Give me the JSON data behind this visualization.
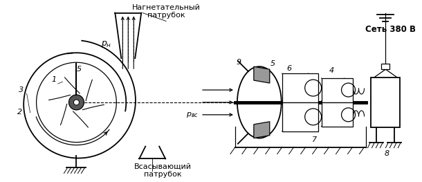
{
  "bg_color": "#ffffff",
  "line_color": "#000000",
  "title_nagn": "Нагнетательный\nпатрубок",
  "title_vsas": "Всасывающий\nпатрубок",
  "title_set": "Сеть 380 В",
  "label_ph": "$p_н$",
  "label_pvs": "$p_{вс}$"
}
